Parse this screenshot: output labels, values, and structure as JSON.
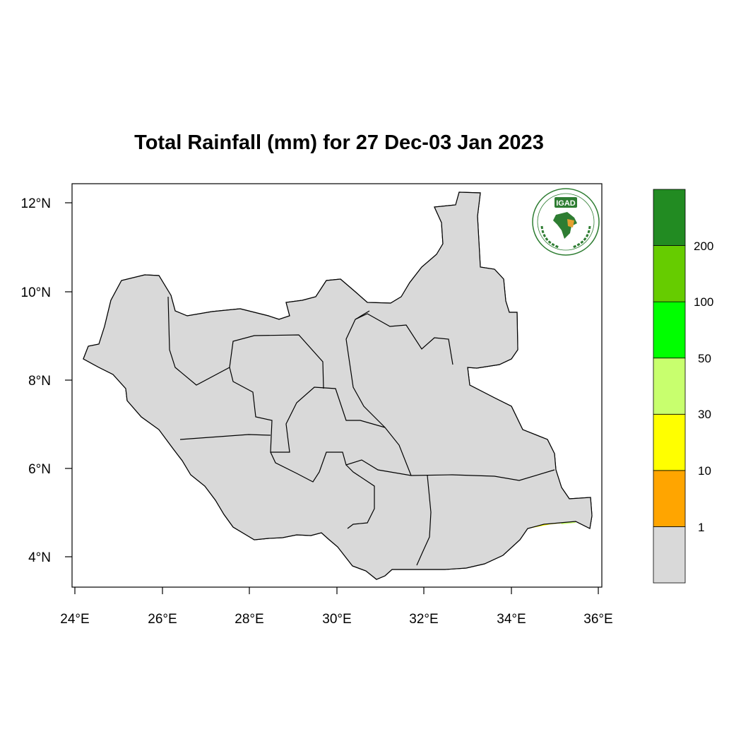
{
  "title": "Total Rainfall (mm) for 27 Dec-03 Jan 2023",
  "axes": {
    "x_ticks": [
      "24°E",
      "26°E",
      "28°E",
      "30°E",
      "32°E",
      "34°E",
      "36°E"
    ],
    "y_ticks": [
      "12°N",
      "10°N",
      "8°N",
      "6°N",
      "4°N"
    ]
  },
  "legend": {
    "labels": [
      "1",
      "10",
      "30",
      "50",
      "100",
      "200"
    ],
    "colors": [
      "#d9d9d9",
      "#ffa500",
      "#ffff00",
      "#c8ff6e",
      "#00ff00",
      "#66cc00",
      "#228b22"
    ]
  },
  "logo": {
    "acronym": "IGAD",
    "ring_text": "INTERGOVERNMENTAL AUTHORITY ON DEVELOPMENT",
    "ring_text_fr": "AUTORITÉ INTERGOUVERNEMENTALE POUR LE DÉVELOPPEMENT"
  },
  "map_colors": {
    "no_rain": "#d9d9d9",
    "light": "#ffa500",
    "moderate": "#ffff00",
    "heavy": "#c8ff6e",
    "very_heavy": "#00cc00",
    "border": "#000000"
  }
}
